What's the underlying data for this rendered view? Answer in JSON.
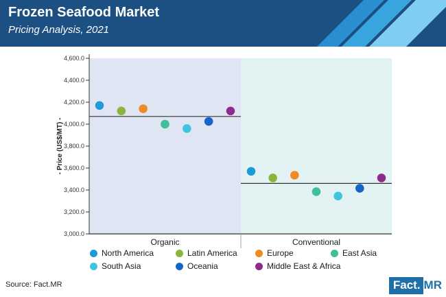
{
  "header": {
    "title": "Frozen Seafood Market",
    "subtitle": "Pricing Analysis, 2021"
  },
  "colors": {
    "header_bg": "#1c4f82",
    "header_stripe": "#2a8fd0",
    "organic_panel": "#dfe5f3",
    "conventional_panel": "#e3f3f3"
  },
  "chart_data": {
    "type": "scatter",
    "ylabel": "- Price (US$/MT) -",
    "ylim": [
      3000,
      4600
    ],
    "yticks": [
      3000,
      3200,
      3400,
      3600,
      3800,
      4000,
      4200,
      4400,
      4600
    ],
    "ytick_labels": [
      "3,000.0",
      "3,200.0",
      "3,400.0",
      "3,600.0",
      "3,800.0",
      "4,000.0",
      "4,200.0",
      "4,400.0",
      "4,600.0"
    ],
    "categories": [
      "Organic",
      "Conventional"
    ],
    "averages": [
      4070,
      3460
    ],
    "grid": false,
    "legend_position": "bottom",
    "series": [
      {
        "name": "North America",
        "color": "#1f9ad6",
        "values": [
          4170,
          3570
        ]
      },
      {
        "name": "Latin America",
        "color": "#8ab43c",
        "values": [
          4120,
          3510
        ]
      },
      {
        "name": "Europe",
        "color": "#f08a24",
        "values": [
          4140,
          3535
        ]
      },
      {
        "name": "East Asia",
        "color": "#3cbf9a",
        "values": [
          4000,
          3385
        ]
      },
      {
        "name": "South Asia",
        "color": "#3fc4e0",
        "values": [
          3960,
          3345
        ]
      },
      {
        "name": "Oceania",
        "color": "#1565c8",
        "values": [
          4025,
          3415
        ]
      },
      {
        "name": "Middle East & Africa",
        "color": "#8e2a8c",
        "values": [
          4120,
          3510
        ]
      }
    ]
  },
  "footer": {
    "source": "Source: Fact.MR",
    "logo_left": "Fact.",
    "logo_right": "MR"
  }
}
